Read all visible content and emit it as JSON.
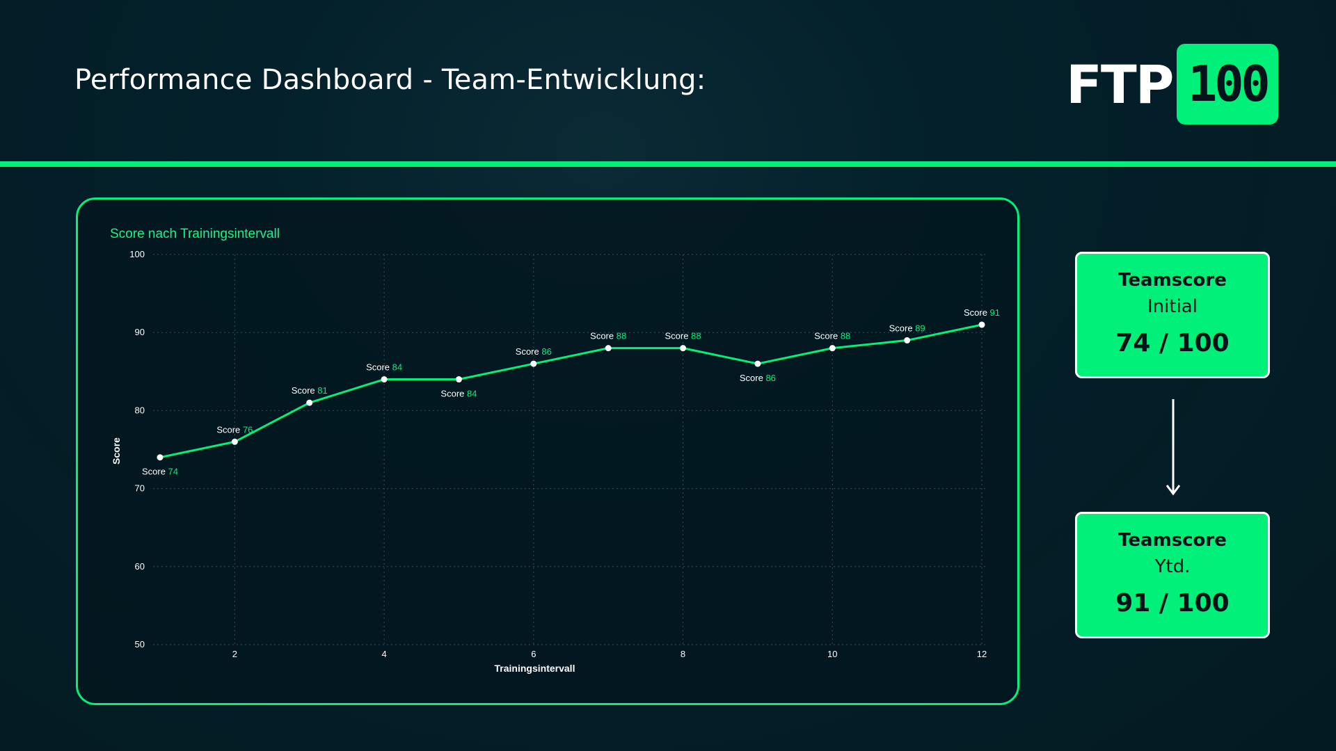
{
  "header": {
    "title": "Performance Dashboard - Team-Entwicklung:",
    "logo_text": "FTP",
    "logo_badge": "100"
  },
  "colors": {
    "accent": "#00f07a",
    "background": "#03202a",
    "text_dark": "#04141a",
    "grid": "#3a4a52"
  },
  "chart_data": {
    "type": "line",
    "title": "Score nach Trainingsintervall",
    "xlabel": "Trainingsintervall",
    "ylabel": "Score",
    "x": [
      1,
      2,
      3,
      4,
      5,
      6,
      7,
      8,
      9,
      10,
      11,
      12
    ],
    "series": [
      {
        "values": [
          74,
          76,
          81,
          84,
          84,
          86,
          88,
          88,
          86,
          88,
          89,
          91
        ]
      }
    ],
    "data_label_prefix": "Score",
    "xticks": [
      2,
      4,
      6,
      8,
      10,
      12
    ],
    "yticks": [
      50,
      60,
      70,
      80,
      90,
      100
    ],
    "xlim": [
      1,
      12
    ],
    "ylim": [
      50,
      100
    ],
    "grid": true,
    "legend": "none"
  },
  "kpis": {
    "initial": {
      "label": "Teamscore",
      "sub": "Initial",
      "value": "74 / 100"
    },
    "ytd": {
      "label": "Teamscore",
      "sub": "Ytd.",
      "value": "91 / 100"
    }
  }
}
